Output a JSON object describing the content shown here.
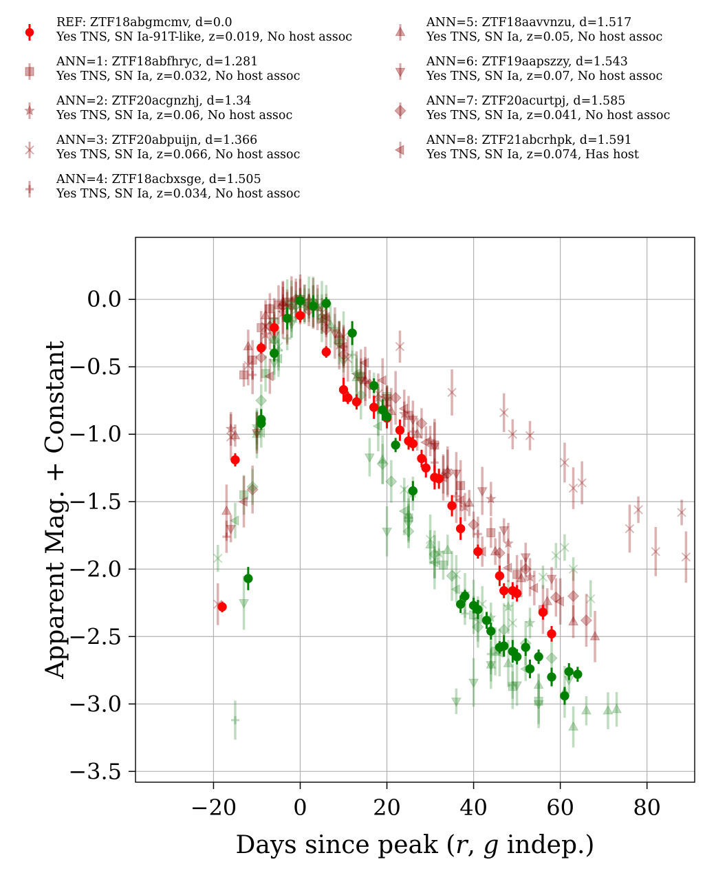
{
  "chart_data": {
    "type": "scatter",
    "xlabel_main": "Days since peak (",
    "xlabel_r": "r",
    "xlabel_sep": ", ",
    "xlabel_g": "g",
    "xlabel_tail": " indep.)",
    "ylabel": "Apparent Mag. + Constant",
    "xlim": [
      -38,
      91
    ],
    "ylim": [
      -3.58,
      0.46
    ],
    "xticks": [
      -20,
      0,
      20,
      40,
      60,
      80
    ],
    "yticks": [
      0.0,
      -0.5,
      -1.0,
      -1.5,
      -2.0,
      -2.5,
      -3.0,
      -3.5
    ],
    "grid": true,
    "legend_placement": "top, two columns above plot",
    "colors": {
      "r_band": "#ff0000",
      "g_band": "#008000",
      "ann_r": "#8b0000",
      "ann_g": "#2e8b2e"
    },
    "legend": [
      {
        "marker": "circle",
        "line1": "REF: ZTF18abgmcmv, d=0.0",
        "line2": "Yes TNS, SN Ia-91T-like, z=0.019, No host assoc"
      },
      {
        "marker": "square",
        "line1": "ANN=1: ZTF18abfhryc, d=1.281",
        "line2": "Yes TNS, SN Ia, z=0.032, No host assoc"
      },
      {
        "marker": "star",
        "line1": "ANN=2: ZTF20acgnzhj, d=1.34",
        "line2": "Yes TNS, SN Ia, z=0.06, No host assoc"
      },
      {
        "marker": "x",
        "line1": "ANN=3: ZTF20abpuijn, d=1.366",
        "line2": "Yes TNS, SN Ia, z=0.066, No host assoc"
      },
      {
        "marker": "plus",
        "line1": "ANN=4: ZTF18acbxsge, d=1.505",
        "line2": "Yes TNS, SN Ia, z=0.034, No host assoc"
      },
      {
        "marker": "triangle-up",
        "line1": "ANN=5: ZTF18aavvnzu, d=1.517",
        "line2": "Yes TNS, SN Ia, z=0.05, No host assoc"
      },
      {
        "marker": "triangle-down",
        "line1": "ANN=6: ZTF19aapszzy, d=1.543",
        "line2": "Yes TNS, SN Ia, z=0.07, No host assoc"
      },
      {
        "marker": "diamond",
        "line1": "ANN=7: ZTF20acurtpj, d=1.585",
        "line2": "Yes TNS, SN Ia, z=0.041, No host assoc"
      },
      {
        "marker": "triangle-left",
        "line1": "ANN=8: ZTF21abcrhpk, d=1.591",
        "line2": "Yes TNS, SN Ia, z=0.074, Has host"
      }
    ],
    "series": [
      {
        "name": "REF: ZTF18abgmcmv, d=0.0",
        "band": "r",
        "marker": "circle",
        "x": [
          -18,
          -15,
          -9,
          -6,
          0,
          6,
          10,
          11,
          13,
          17,
          20,
          23,
          25,
          26,
          28,
          29,
          31,
          32,
          35,
          37,
          41,
          46,
          47,
          49,
          50,
          56,
          58
        ],
        "y": [
          -2.28,
          -1.19,
          -0.36,
          -0.21,
          -0.12,
          -0.39,
          -0.67,
          -0.73,
          -0.76,
          -0.8,
          -0.88,
          -0.97,
          -1.05,
          -1.07,
          -1.18,
          -1.25,
          -1.32,
          -1.33,
          -1.53,
          -1.7,
          -1.87,
          -2.05,
          -2.16,
          -2.16,
          -2.18,
          -2.32,
          -2.48
        ]
      },
      {
        "name": "REF: ZTF18abgmcmv, d=0.0",
        "band": "g",
        "marker": "circle",
        "x": [
          -12,
          -9,
          -9,
          -6,
          -3,
          0,
          3,
          6,
          12,
          17,
          19,
          20,
          22,
          26,
          37,
          38,
          40,
          41,
          43,
          44,
          46,
          47,
          49,
          50,
          52,
          53,
          55,
          58,
          61,
          62,
          64
        ],
        "y": [
          -2.07,
          -0.89,
          -0.92,
          -0.4,
          -0.14,
          -0.01,
          -0.05,
          -0.03,
          -0.25,
          -0.64,
          -0.82,
          -0.87,
          -1.08,
          -1.42,
          -2.26,
          -2.2,
          -2.27,
          -2.3,
          -2.38,
          -2.46,
          -2.58,
          -2.57,
          -2.61,
          -2.65,
          -2.58,
          -2.74,
          -2.65,
          -2.8,
          -2.94,
          -2.76,
          -2.78
        ]
      },
      {
        "name": "ANN=1: ZTF18abfhryc, d=1.281",
        "band": "r",
        "marker": "square",
        "x": [
          -13,
          -11,
          -9,
          -7,
          -5,
          -3,
          0,
          3,
          6,
          9,
          14,
          20,
          25,
          31,
          37,
          44,
          50,
          56
        ],
        "y": [
          -0.56,
          -0.45,
          -0.21,
          -0.07,
          -0.04,
          -0.02,
          0.0,
          -0.03,
          -0.16,
          -0.3,
          -0.57,
          -0.76,
          -0.86,
          -1.08,
          -1.38,
          -1.73,
          -2.04,
          -2.3
        ]
      },
      {
        "name": "ANN=1: ZTF18abfhryc, d=1.281",
        "band": "g",
        "marker": "square",
        "x": [
          -13,
          -8,
          -6,
          -3,
          0,
          5,
          20,
          25,
          33,
          40,
          45,
          49,
          55
        ],
        "y": [
          -1.45,
          -0.55,
          -0.17,
          -0.04,
          0.0,
          -0.14,
          -0.72,
          -1.62,
          -1.97,
          -2.34,
          -2.61,
          -2.87,
          -2.98
        ]
      },
      {
        "name": "ANN=2: ZTF20acgnzhj, d=1.34",
        "band": "r",
        "marker": "star",
        "x": [
          -16,
          -8,
          -4,
          -1,
          2,
          5,
          9,
          13,
          18,
          24,
          30,
          34,
          38,
          44,
          48,
          53
        ],
        "y": [
          -0.96,
          -0.26,
          -0.1,
          0.0,
          -0.05,
          -0.15,
          -0.34,
          -0.56,
          -0.73,
          -0.85,
          -1.05,
          -1.27,
          -1.54,
          -1.48,
          -1.81,
          -2.06
        ]
      },
      {
        "name": "ANN=2: ZTF20acgnzhj, d=1.34",
        "band": "g",
        "marker": "star",
        "x": [
          -10,
          -6,
          -2,
          3,
          8,
          14,
          20,
          26,
          32,
          38,
          44,
          48,
          53
        ],
        "y": [
          -0.94,
          -0.38,
          -0.14,
          -0.02,
          -0.22,
          -0.56,
          -0.83,
          -1.44,
          -1.88,
          -2.18,
          -2.36,
          -2.28,
          -2.4
        ]
      },
      {
        "name": "ANN=3: ZTF20abpuijn, d=1.366",
        "band": "r",
        "marker": "x",
        "x": [
          -19,
          -16,
          -12,
          -8,
          -4,
          0,
          5,
          11,
          18,
          23,
          35,
          47,
          49,
          53,
          61,
          63,
          65,
          76,
          78,
          82,
          88,
          89
        ],
        "y": [
          -2.26,
          -1.02,
          -0.49,
          -0.2,
          -0.06,
          -0.01,
          -0.1,
          -0.44,
          -0.7,
          -0.35,
          -0.69,
          -0.84,
          -1.0,
          -1.01,
          -1.21,
          -1.4,
          -1.36,
          -1.7,
          -1.56,
          -1.87,
          -1.58,
          -1.91
        ]
      },
      {
        "name": "ANN=3: ZTF20abpuijn, d=1.366",
        "band": "g",
        "marker": "x",
        "x": [
          -19,
          -10,
          -5,
          -1,
          4,
          10,
          17,
          24,
          30,
          36,
          42,
          49,
          56,
          59,
          61,
          63,
          67
        ],
        "y": [
          -1.92,
          -0.97,
          -0.35,
          -0.08,
          -0.05,
          -0.28,
          -0.64,
          -1.41,
          -1.78,
          -2.04,
          -2.26,
          -2.4,
          -2.06,
          -1.9,
          -1.84,
          -2.0,
          -2.22
        ]
      },
      {
        "name": "ANN=4: ZTF18acbxsge, d=1.505",
        "band": "r",
        "marker": "plus",
        "x": [
          -17,
          -11,
          -6,
          -2,
          2,
          6,
          10,
          15,
          20,
          26,
          31,
          36,
          41
        ],
        "y": [
          -1.76,
          -0.56,
          -0.14,
          -0.01,
          0.0,
          -0.12,
          -0.35,
          -0.61,
          -0.79,
          -0.98,
          -1.21,
          -1.46,
          -1.74
        ]
      },
      {
        "name": "ANN=4: ZTF18acbxsge, d=1.505",
        "band": "g",
        "marker": "plus",
        "x": [
          -15,
          -10,
          -5,
          -3,
          1,
          5,
          12,
          18,
          25,
          31,
          38,
          44,
          49
        ],
        "y": [
          -3.12,
          -0.98,
          -0.38,
          -0.29,
          -0.03,
          -0.06,
          -0.41,
          -0.82,
          -1.62,
          -1.95,
          -2.33,
          -2.63,
          -2.86
        ]
      },
      {
        "name": "ANN=5: ZTF18aavvnzu, d=1.517",
        "band": "r",
        "marker": "triangle-up",
        "x": [
          -17,
          -15,
          -12,
          -8,
          -4,
          0,
          4,
          9,
          15,
          21,
          27,
          33,
          39,
          45,
          51,
          57,
          63,
          68
        ],
        "y": [
          -1.57,
          -1.01,
          -0.35,
          -0.12,
          -0.02,
          0.0,
          -0.06,
          -0.26,
          -0.6,
          -0.83,
          -1.0,
          -1.3,
          -1.51,
          -1.87,
          -2.07,
          -2.24,
          -2.39,
          -2.5
        ]
      },
      {
        "name": "ANN=5: ZTF18aavvnzu, d=1.517",
        "band": "g",
        "marker": "triangle-up",
        "x": [
          -10,
          -6,
          -2,
          2,
          7,
          13,
          19,
          25,
          30,
          34,
          40,
          44,
          48,
          55,
          61,
          63,
          66,
          71,
          73
        ],
        "y": [
          -1.0,
          -0.3,
          -0.05,
          0.0,
          -0.19,
          -0.58,
          -1.19,
          -1.6,
          -1.82,
          -1.86,
          -2.26,
          -2.71,
          -2.7,
          -2.86,
          -2.91,
          -3.17,
          -3.05,
          -3.05,
          -3.04
        ]
      },
      {
        "name": "ANN=6: ZTF19aapszzy, d=1.543",
        "band": "r",
        "marker": "triangle-down",
        "x": [
          -16,
          -10,
          -6,
          -2,
          3,
          8,
          14,
          20,
          26,
          31,
          36,
          42,
          47,
          52,
          58
        ],
        "y": [
          -1.7,
          -0.99,
          -0.27,
          -0.06,
          -0.05,
          -0.25,
          -0.6,
          -0.73,
          -0.89,
          -1.09,
          -1.29,
          -1.42,
          -1.71,
          -1.91,
          -2.07
        ]
      },
      {
        "name": "ANN=6: ZTF19aapszzy, d=1.543",
        "band": "g",
        "marker": "triangle-down",
        "x": [
          -13,
          -6,
          -2,
          4,
          10,
          16,
          20,
          25,
          36,
          40,
          44,
          50,
          55,
          62
        ],
        "y": [
          -2.25,
          -0.47,
          -0.18,
          -0.06,
          -0.46,
          -1.17,
          -1.72,
          -1.66,
          -2.98,
          -2.84,
          -2.71,
          -2.86,
          -3.0,
          -2.82
        ]
      },
      {
        "name": "ANN=7: ZTF20acurtpj, d=1.585",
        "band": "r",
        "marker": "diamond",
        "x": [
          -11,
          -9,
          -7,
          -4,
          -1,
          2,
          6,
          10,
          16,
          22,
          28,
          34,
          40,
          46,
          52,
          59,
          63,
          66
        ],
        "y": [
          -1.41,
          -0.43,
          -0.2,
          -0.05,
          0.0,
          -0.08,
          -0.22,
          -0.41,
          -0.63,
          -0.73,
          -0.92,
          -1.29,
          -1.67,
          -1.88,
          -2.0,
          -2.21,
          -2.2,
          -2.38
        ]
      },
      {
        "name": "ANN=7: ZTF20acurtpj, d=1.585",
        "band": "g",
        "marker": "diamond",
        "x": [
          -11,
          -9,
          -6,
          -1,
          3,
          9,
          14,
          19,
          21,
          25,
          31,
          35,
          41,
          47,
          52,
          58
        ],
        "y": [
          -1.39,
          -0.75,
          -0.3,
          -0.04,
          -0.02,
          -0.32,
          -0.71,
          -1.22,
          -1.35,
          -1.72,
          -1.89,
          -2.05,
          -2.43,
          -2.45,
          -2.55,
          -2.66
        ]
      },
      {
        "name": "ANN=8: ZTF21abcrhpk, d=1.591",
        "band": "r",
        "marker": "triangle-left",
        "x": [
          -13,
          -7,
          -3,
          1,
          6,
          10,
          15,
          19,
          24,
          29,
          33,
          37,
          42,
          48,
          54,
          60
        ],
        "y": [
          -1.5,
          -0.57,
          -0.14,
          -0.03,
          -0.13,
          -0.35,
          -0.47,
          -0.6,
          -0.81,
          -1.06,
          -1.32,
          -1.49,
          -1.87,
          -1.99,
          -2.14,
          -2.24
        ]
      },
      {
        "name": "ANN=8: ZTF21abcrhpk, d=1.591",
        "band": "g",
        "marker": "triangle-left",
        "x": [
          -15,
          -9,
          -5,
          1,
          6,
          13,
          18,
          24,
          31,
          36,
          41,
          46,
          52
        ],
        "y": [
          -1.64,
          -0.99,
          -0.44,
          -0.05,
          -0.03,
          -0.55,
          -0.94,
          -1.57,
          -1.95,
          -2.15,
          -2.37,
          -2.62,
          -2.74
        ]
      }
    ]
  }
}
